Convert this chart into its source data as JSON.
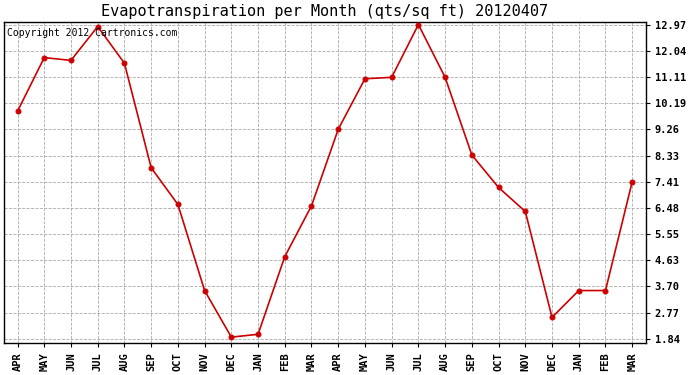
{
  "title": "Evapotranspiration per Month (qts/sq ft) 20120407",
  "copyright_text": "Copyright 2012 Cartronics.com",
  "months": [
    "APR",
    "MAY",
    "JUN",
    "JUL",
    "AUG",
    "SEP",
    "OCT",
    "NOV",
    "DEC",
    "JAN",
    "FEB",
    "MAR",
    "APR",
    "MAY",
    "JUN",
    "JUL",
    "AUG",
    "SEP",
    "OCT",
    "NOV",
    "DEC",
    "JAN",
    "FEB",
    "MAR"
  ],
  "values": [
    9.9,
    11.8,
    11.7,
    12.9,
    11.6,
    7.9,
    6.6,
    3.55,
    1.9,
    2.0,
    4.75,
    6.55,
    9.26,
    11.05,
    11.1,
    12.97,
    11.1,
    8.35,
    7.2,
    6.35,
    2.6,
    3.55,
    3.55,
    7.4
  ],
  "yticks": [
    1.84,
    2.77,
    3.7,
    4.63,
    5.55,
    6.48,
    7.41,
    8.33,
    9.26,
    10.19,
    11.11,
    12.04,
    12.97
  ],
  "ytick_labels": [
    "1.84",
    "2.77",
    "3.70",
    "4.63",
    "5.55",
    "6.48",
    "7.41",
    "8.33",
    "9.26",
    "10.19",
    "11.11",
    "12.04",
    "12.97"
  ],
  "line_color": "#cc0000",
  "marker_color": "#cc0000",
  "background_color": "#ffffff",
  "grid_color": "#aaaaaa",
  "title_fontsize": 11,
  "tick_fontsize": 7.5,
  "copyright_fontsize": 7
}
